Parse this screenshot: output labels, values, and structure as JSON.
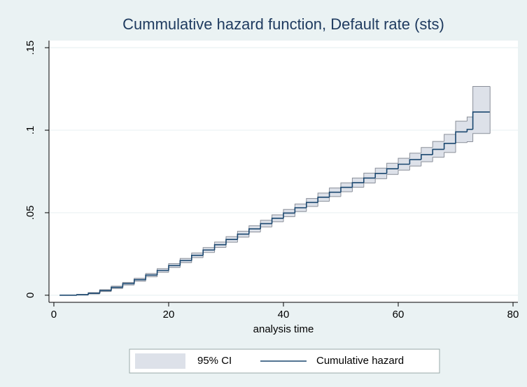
{
  "chart_data": {
    "type": "step",
    "title": "Cummulative hazard function, Default rate (sts)",
    "x_label": "analysis time",
    "x": [
      1,
      4,
      6,
      8,
      10,
      12,
      14,
      16,
      18,
      20,
      22,
      24,
      26,
      28,
      30,
      32,
      34,
      36,
      38,
      40,
      42,
      44,
      46,
      48,
      50,
      52,
      54,
      56,
      58,
      60,
      62,
      64,
      66,
      68,
      70,
      72,
      73,
      76
    ],
    "series": [
      {
        "name": "95% CI",
        "color": "#dde1e9",
        "edge": "#8a8f99",
        "lower": [
          0,
          0.0001,
          0.0008,
          0.0022,
          0.0041,
          0.0062,
          0.0085,
          0.0112,
          0.0139,
          0.0168,
          0.0197,
          0.0228,
          0.0259,
          0.029,
          0.0321,
          0.0352,
          0.0383,
          0.0414,
          0.0445,
          0.0476,
          0.0507,
          0.0538,
          0.0569,
          0.0598,
          0.0627,
          0.0654,
          0.068,
          0.0706,
          0.0732,
          0.0758,
          0.0783,
          0.0809,
          0.0836,
          0.0865,
          0.0925,
          0.093,
          0.098,
          0.098
        ],
        "upper": [
          0,
          0.0005,
          0.0016,
          0.0034,
          0.0055,
          0.0078,
          0.0103,
          0.0132,
          0.0161,
          0.0192,
          0.0223,
          0.0256,
          0.0289,
          0.0322,
          0.0355,
          0.0388,
          0.0421,
          0.0454,
          0.0487,
          0.052,
          0.0553,
          0.0586,
          0.0619,
          0.065,
          0.0681,
          0.071,
          0.074,
          0.077,
          0.08,
          0.083,
          0.0861,
          0.0895,
          0.0932,
          0.0975,
          0.1055,
          0.108,
          0.1265,
          0.1265
        ]
      },
      {
        "name": "Cumulative hazard",
        "color": "#1a476f",
        "values": [
          0,
          0.0003,
          0.0012,
          0.0028,
          0.0048,
          0.007,
          0.0094,
          0.0122,
          0.015,
          0.018,
          0.021,
          0.0242,
          0.0274,
          0.0306,
          0.0338,
          0.037,
          0.0402,
          0.0434,
          0.0466,
          0.0498,
          0.053,
          0.0562,
          0.0594,
          0.0624,
          0.0654,
          0.0682,
          0.071,
          0.0738,
          0.0766,
          0.0794,
          0.0822,
          0.0852,
          0.0884,
          0.092,
          0.099,
          0.1005,
          0.111,
          0.111
        ]
      }
    ],
    "xlim": [
      -0.85,
      80.85
    ],
    "ylim": [
      -0.0043,
      0.1543
    ],
    "xticks": [
      0,
      20,
      40,
      60,
      80
    ],
    "yticks": [
      0,
      {
        "value": 0.05,
        "label": ".05"
      },
      {
        "value": 0.1,
        "label": ".1"
      },
      {
        "value": 0.15,
        "label": ".15"
      }
    ],
    "grid": true
  }
}
